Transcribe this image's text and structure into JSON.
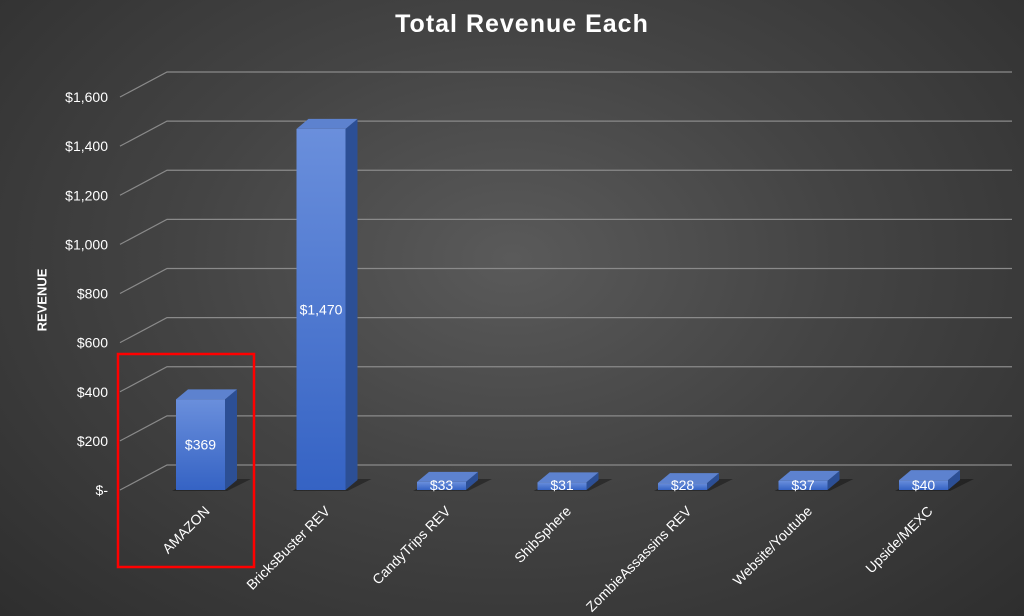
{
  "chart_data": {
    "type": "bar",
    "title": "Total Revenue Each",
    "xlabel": "",
    "ylabel": "REVENUE",
    "categories": [
      "AMAZON",
      "BricksBuster REV",
      "CandyTrips REV",
      "ShibSphere",
      "ZombieAssassins REV",
      "Website/Youtube",
      "Upside/MEXC"
    ],
    "values": [
      369,
      1470,
      33,
      31,
      28,
      37,
      40
    ],
    "data_labels": [
      "$369",
      "$1,470",
      "$33",
      "$31",
      "$28",
      "$37",
      "$40"
    ],
    "ylim": [
      0,
      1600
    ],
    "yticks": [
      0,
      200,
      400,
      600,
      800,
      1000,
      1200,
      1400,
      1600
    ],
    "ytick_labels": [
      "$-",
      "$200",
      "$400",
      "$600",
      "$800",
      "$1,000",
      "$1,200",
      "$1,400",
      "$1,600"
    ],
    "grid": true,
    "legend": "none",
    "style": "3d-column",
    "bar_color": "#4472c4",
    "highlight": {
      "category": "AMAZON",
      "color": "#ff0000"
    }
  }
}
